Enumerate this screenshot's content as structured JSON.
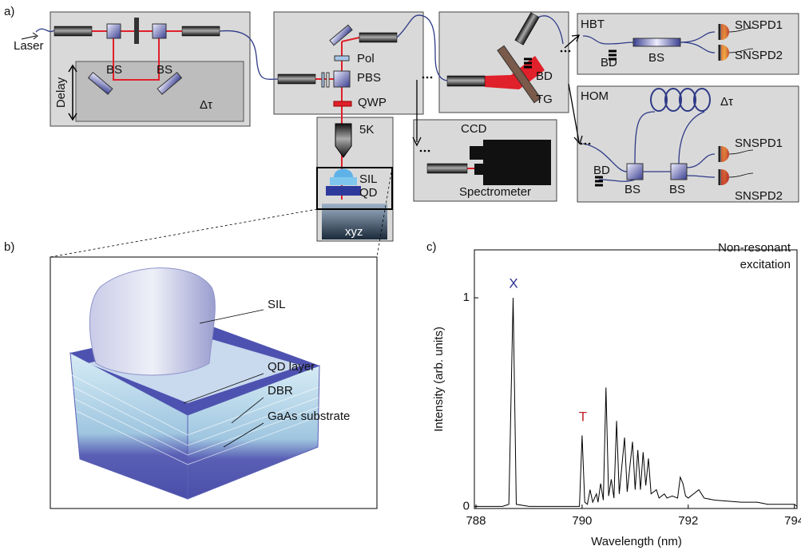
{
  "figure": {
    "panel_labels": [
      "a)",
      "b)",
      "c)"
    ],
    "delay_module": {
      "laser": "Laser",
      "splitters": [
        "BS",
        "BS"
      ],
      "delay": "Delay",
      "delay_tau": "Δτ"
    },
    "excitation_module": {
      "polarizer": "Pol",
      "pbs": "PBS",
      "qwp": "QWP"
    },
    "cryostat": {
      "temperature": "5K",
      "sil": "SIL",
      "qd": "QD",
      "stage": "xyz"
    },
    "grating_module": {
      "beam_dump": "BD",
      "grating": "TG"
    },
    "spectrometer": {
      "camera": "CCD",
      "name": "Spectrometer"
    },
    "hbt": {
      "title": "HBT",
      "beam_dump": "BD",
      "splitter": "BS",
      "detectors": [
        "SNSPD1",
        "SNSPD2"
      ]
    },
    "hom": {
      "title": "HOM",
      "delay_tau": "Δτ",
      "beam_dump": "BD",
      "splitters": [
        "BS",
        "BS"
      ],
      "detectors": [
        "SNSPD1",
        "SNSPD2"
      ]
    },
    "sample": {
      "labels": [
        "SIL",
        "QD layer",
        "DBR",
        "GaAs substrate"
      ]
    }
  },
  "chart_data": {
    "type": "line",
    "xlabel": "Wavelength (nm)",
    "ylabel": "Intensity (arb. units)",
    "annotation": [
      "Non-resonant",
      "excitation"
    ],
    "peak_labels": [
      {
        "text": "X",
        "color": "#2e3192"
      },
      {
        "text": "T",
        "color": "#c1272d"
      }
    ],
    "color": "#000000",
    "x": [
      788.0,
      788.5,
      788.62,
      788.7,
      788.76,
      789.0,
      789.5,
      789.95,
      790.0,
      790.05,
      790.1,
      790.15,
      790.2,
      790.27,
      790.3,
      790.35,
      790.4,
      790.45,
      790.5,
      790.55,
      790.6,
      790.65,
      790.7,
      790.8,
      790.85,
      790.95,
      791.0,
      791.05,
      791.1,
      791.15,
      791.2,
      791.25,
      791.3,
      791.4,
      791.45,
      791.55,
      791.6,
      791.7,
      791.8,
      791.85,
      791.9,
      791.95,
      792.0,
      792.2,
      792.3,
      792.5,
      793.0,
      793.3,
      793.5,
      794.0,
      794.05
    ],
    "values": [
      0.0,
      0.0,
      0.01,
      1.0,
      0.01,
      0.0,
      0.0,
      0.0,
      0.34,
      0.02,
      0.01,
      0.08,
      0.02,
      0.06,
      0.02,
      0.11,
      0.03,
      0.57,
      0.05,
      0.13,
      0.04,
      0.41,
      0.06,
      0.33,
      0.07,
      0.31,
      0.08,
      0.27,
      0.08,
      0.26,
      0.1,
      0.23,
      0.06,
      0.08,
      0.04,
      0.06,
      0.04,
      0.05,
      0.04,
      0.14,
      0.11,
      0.05,
      0.04,
      0.08,
      0.04,
      0.03,
      0.02,
      0.02,
      0.01,
      0.01,
      0.0
    ],
    "xlim": [
      787.97,
      794.05
    ],
    "ylim": [
      -0.01,
      1.23
    ],
    "xticks": [
      788,
      790,
      792,
      794
    ],
    "yticks": [
      0,
      1
    ]
  }
}
